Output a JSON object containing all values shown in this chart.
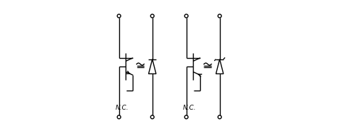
{
  "bg_color": "#ffffff",
  "lc": "#000000",
  "lw": 1.0,
  "CR": 0.013,
  "figsize": [
    4.99,
    1.88
  ],
  "dpi": 100,
  "d_hw": 0.028,
  "d_hh": 0.055,
  "bend": 0.012
}
